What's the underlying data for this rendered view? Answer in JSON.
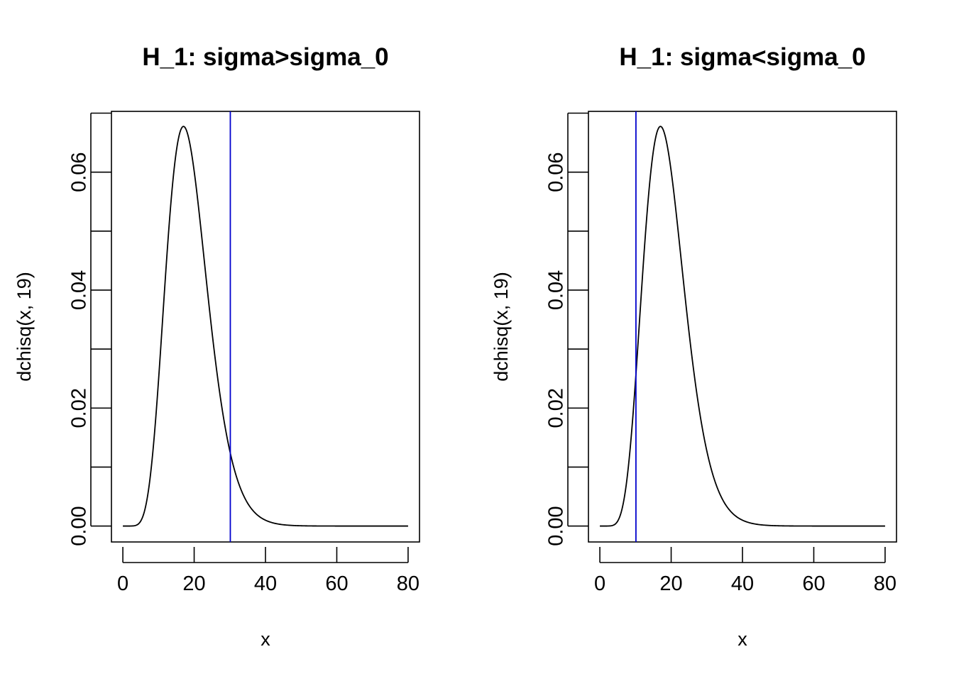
{
  "chart_data": [
    {
      "type": "line",
      "title": "H_1: sigma>sigma_0",
      "xlabel": "x",
      "ylabel": "dchisq(x, 19)",
      "xlim": [
        -3.2,
        83.2
      ],
      "ylim": [
        -0.0027,
        0.0703
      ],
      "x_ticks": [
        0,
        20,
        40,
        60,
        80
      ],
      "x_tick_labels": [
        "0",
        "20",
        "40",
        "60",
        "80"
      ],
      "y_ticks": [
        0.0,
        0.01,
        0.02,
        0.03,
        0.04,
        0.05,
        0.06,
        0.07
      ],
      "y_tick_labels": [
        "0.00",
        "",
        "0.02",
        "",
        "0.04",
        "",
        "0.06",
        ""
      ],
      "grid": false,
      "series": [
        {
          "distribution": "chi-squared",
          "df": 19,
          "x_range": [
            0,
            80
          ],
          "color": "#000000"
        }
      ],
      "vertical_lines": [
        {
          "x": 30.14,
          "color": "#0000CD"
        }
      ]
    },
    {
      "type": "line",
      "title": "H_1: sigma<sigma_0",
      "xlabel": "x",
      "ylabel": "dchisq(x, 19)",
      "xlim": [
        -3.2,
        83.2
      ],
      "ylim": [
        -0.0027,
        0.0703
      ],
      "x_ticks": [
        0,
        20,
        40,
        60,
        80
      ],
      "x_tick_labels": [
        "0",
        "20",
        "40",
        "60",
        "80"
      ],
      "y_ticks": [
        0.0,
        0.01,
        0.02,
        0.03,
        0.04,
        0.05,
        0.06,
        0.07
      ],
      "y_tick_labels": [
        "0.00",
        "",
        "0.02",
        "",
        "0.04",
        "",
        "0.06",
        ""
      ],
      "grid": false,
      "series": [
        {
          "distribution": "chi-squared",
          "df": 19,
          "x_range": [
            0,
            80
          ],
          "color": "#000000"
        }
      ],
      "vertical_lines": [
        {
          "x": 10.12,
          "color": "#0000CD"
        }
      ]
    }
  ]
}
